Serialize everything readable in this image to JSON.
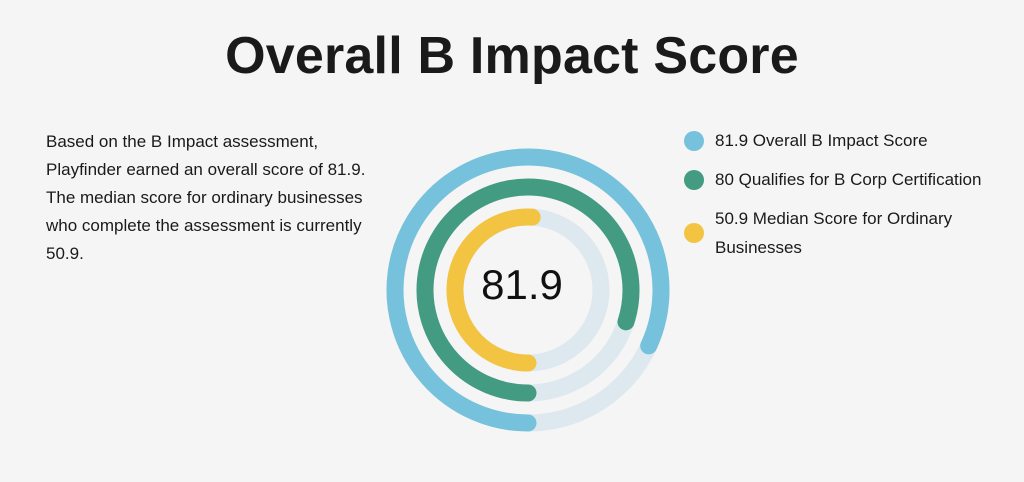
{
  "title": "Overall B Impact Score",
  "description": "Based on the B Impact assessment, Playfinder earned an overall score of 81.9. The median score for ordinary businesses who complete the assessment is currently 50.9.",
  "center_value": "81.9",
  "chart_data": {
    "type": "radial-bar",
    "max": 100,
    "track_color": "#dde9ef",
    "series": [
      {
        "value": 81.9,
        "name": "81.9 Overall B Impact Score",
        "color": "#76c1dc"
      },
      {
        "value": 80,
        "name": "80 Qualifies for B Corp Certification",
        "color": "#439b81"
      },
      {
        "value": 50.9,
        "name": "50.9 Median Score for Ordinary Businesses",
        "color": "#f3c442"
      }
    ],
    "legend_position": "right"
  }
}
